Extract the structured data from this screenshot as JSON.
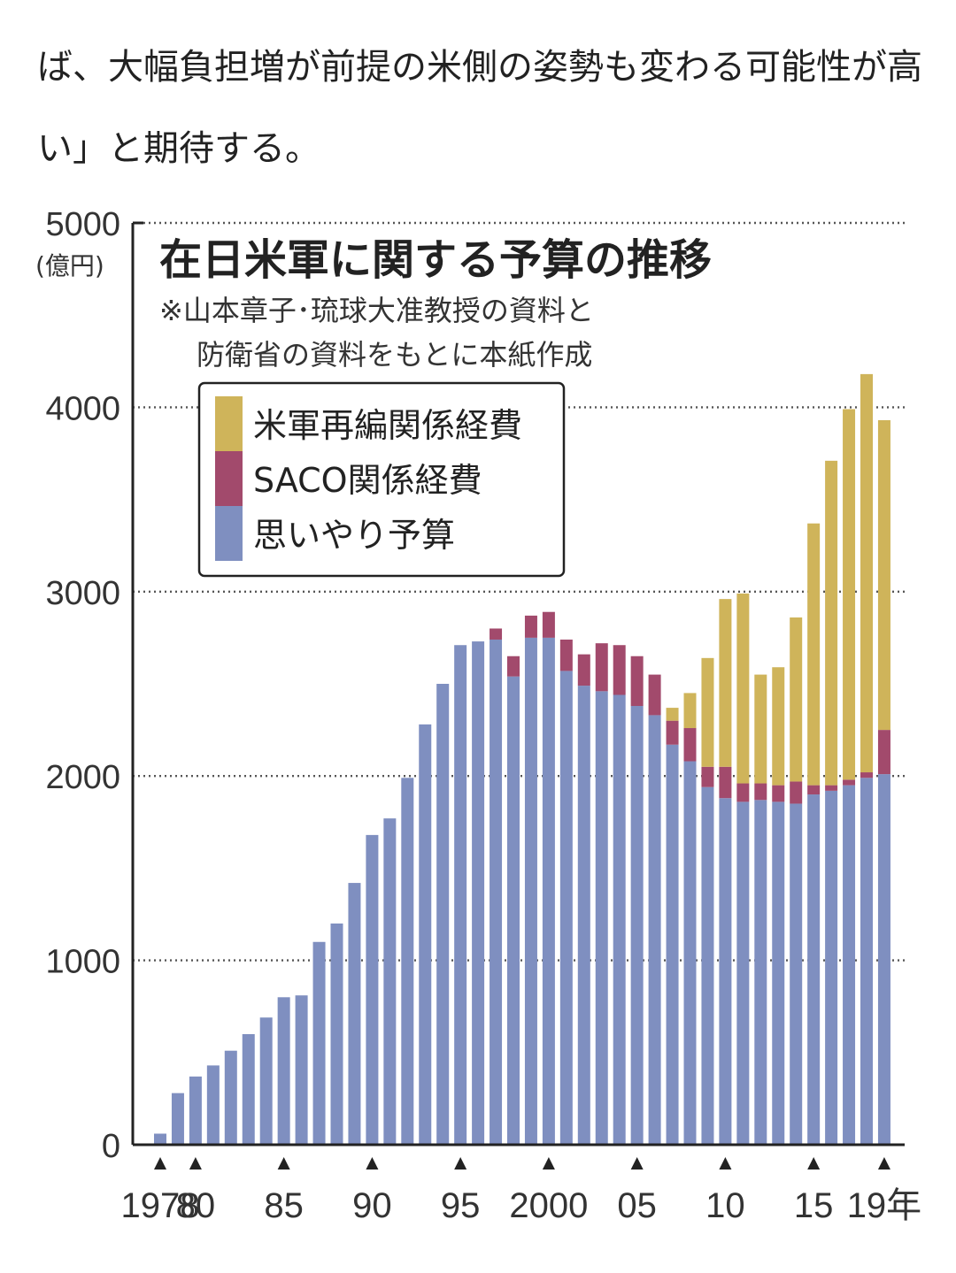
{
  "article": {
    "lines": [
      "ば、大幅負担増が前提の米側の姿勢も変わる可能性が高",
      "い」と期待する。"
    ]
  },
  "chart_data": {
    "type": "bar",
    "stacked": true,
    "title": "在日米軍に関する予算の推移",
    "note_lines": [
      "※山本章子･琉球大准教授の資料と",
      "防衛省の資料をもとに本紙作成"
    ],
    "y_unit": "(億円)",
    "ylim": [
      0,
      5000
    ],
    "y_ticks": [
      0,
      1000,
      2000,
      3000,
      4000,
      5000
    ],
    "y_tick_labels": [
      "0",
      "1000",
      "2000",
      "3000",
      "4000",
      "5000"
    ],
    "grid": "dotted horizontal at 1000-step ticks",
    "x_tick_years": [
      1978,
      1980,
      1985,
      1990,
      1995,
      2000,
      2005,
      2010,
      2015,
      2019
    ],
    "x_tick_labels": [
      "1978",
      "80",
      "85",
      "90",
      "95",
      "2000",
      "05",
      "10",
      "15",
      "19年"
    ],
    "legend_position": "top-left inside plot",
    "categories": [
      1978,
      1979,
      1980,
      1981,
      1982,
      1983,
      1984,
      1985,
      1986,
      1987,
      1988,
      1989,
      1990,
      1991,
      1992,
      1993,
      1994,
      1995,
      1996,
      1997,
      1998,
      1999,
      2000,
      2001,
      2002,
      2003,
      2004,
      2005,
      2006,
      2007,
      2008,
      2009,
      2010,
      2011,
      2012,
      2013,
      2014,
      2015,
      2016,
      2017,
      2018,
      2019
    ],
    "series": [
      {
        "name": "思いやり予算",
        "color": "#7f8fc0",
        "values": [
          60,
          280,
          370,
          430,
          510,
          600,
          690,
          800,
          810,
          1100,
          1200,
          1420,
          1680,
          1770,
          1990,
          2280,
          2500,
          2710,
          2730,
          2740,
          2540,
          2750,
          2750,
          2570,
          2490,
          2460,
          2440,
          2380,
          2330,
          2170,
          2080,
          1940,
          1880,
          1860,
          1870,
          1860,
          1850,
          1900,
          1920,
          1950,
          1990,
          2010
        ]
      },
      {
        "name": "SACO関係経費",
        "color": "#a24a6c",
        "values": [
          0,
          0,
          0,
          0,
          0,
          0,
          0,
          0,
          0,
          0,
          0,
          0,
          0,
          0,
          0,
          0,
          0,
          0,
          0,
          60,
          110,
          120,
          140,
          170,
          170,
          260,
          270,
          270,
          220,
          130,
          180,
          110,
          170,
          100,
          90,
          90,
          120,
          50,
          30,
          30,
          30,
          240
        ]
      },
      {
        "name": "米軍再編関係経費",
        "color": "#cfb45a",
        "values": [
          0,
          0,
          0,
          0,
          0,
          0,
          0,
          0,
          0,
          0,
          0,
          0,
          0,
          0,
          0,
          0,
          0,
          0,
          0,
          0,
          0,
          0,
          0,
          0,
          0,
          0,
          0,
          0,
          0,
          70,
          190,
          590,
          910,
          1030,
          590,
          640,
          890,
          1420,
          1760,
          2010,
          2160,
          1680
        ]
      }
    ]
  }
}
